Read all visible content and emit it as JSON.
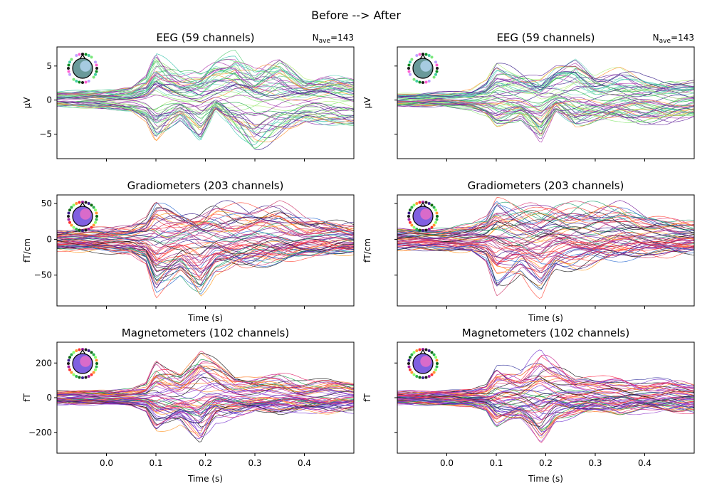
{
  "figure": {
    "suptitle": "Before --> After"
  },
  "chart_data": [
    {
      "type": "line",
      "col": "Before",
      "title": "EEG (59 channels)",
      "nave_label": "N",
      "nave_sub": "ave",
      "nave_value": "=143",
      "ylabel": "µV",
      "xlabel": "",
      "xlim": [
        -0.1,
        0.5
      ],
      "ylim": [
        -8.6,
        7.8
      ],
      "yticks": [
        -5,
        0,
        5
      ],
      "ytick_labels": [
        "−5",
        "0",
        "5"
      ],
      "xticks": [
        0.0,
        0.1,
        0.2,
        0.3,
        0.4
      ],
      "xtick_labels": [],
      "n_channels": 59,
      "palette": [
        "#3a1f8a",
        "#6a2fa0",
        "#8c2aa5",
        "#b040b0",
        "#5dd07c",
        "#8fe87a",
        "#b7ef7e",
        "#40c6b0",
        "#7adcc6",
        "#2fb44f",
        "#ff9a3c"
      ],
      "envelope": {
        "x": [
          -0.1,
          0.0,
          0.05,
          0.08,
          0.1,
          0.15,
          0.19,
          0.22,
          0.26,
          0.3,
          0.35,
          0.4,
          0.45,
          0.5
        ],
        "max": [
          1.2,
          1.5,
          1.7,
          3.2,
          6.8,
          4.0,
          3.5,
          6.0,
          7.0,
          4.2,
          5.5,
          3.0,
          3.5,
          3.0
        ],
        "min": [
          -1.0,
          -1.3,
          -1.8,
          -3.0,
          -6.0,
          -2.8,
          -6.5,
          -1.0,
          -4.5,
          -7.5,
          -5.0,
          -3.5,
          -4.0,
          -4.2
        ]
      }
    },
    {
      "type": "line",
      "col": "After",
      "title": "EEG (59 channels)",
      "nave_label": "N",
      "nave_sub": "ave",
      "nave_value": "=143",
      "ylabel": "µV",
      "xlabel": "",
      "xlim": [
        -0.1,
        0.5
      ],
      "ylim": [
        -8.6,
        7.8
      ],
      "yticks": [
        -5,
        0,
        5
      ],
      "ytick_labels": [],
      "xticks": [
        0.0,
        0.1,
        0.2,
        0.3,
        0.4
      ],
      "xtick_labels": [],
      "n_channels": 59,
      "palette": [
        "#3a1f8a",
        "#6a2fa0",
        "#8c2aa5",
        "#b040b0",
        "#5dd07c",
        "#8fe87a",
        "#b7ef7e",
        "#40c6b0",
        "#7adcc6",
        "#2fb44f",
        "#ff9a3c"
      ],
      "envelope": {
        "x": [
          -0.1,
          0.0,
          0.05,
          0.08,
          0.1,
          0.15,
          0.19,
          0.22,
          0.26,
          0.3,
          0.35,
          0.4,
          0.45,
          0.5
        ],
        "max": [
          1.0,
          1.2,
          1.5,
          2.8,
          5.5,
          4.5,
          3.5,
          6.2,
          7.0,
          4.0,
          4.5,
          3.2,
          3.5,
          3.0
        ],
        "min": [
          -1.0,
          -1.0,
          -1.5,
          -2.5,
          -4.0,
          -3.0,
          -7.3,
          -1.5,
          -4.0,
          -3.5,
          -3.0,
          -3.5,
          -3.5,
          -2.8
        ]
      }
    },
    {
      "type": "line",
      "col": "Before",
      "title": "Gradiometers (203 channels)",
      "ylabel": "fT/cm",
      "xlabel": "Time (s)",
      "xlim": [
        -0.1,
        0.5
      ],
      "ylim": [
        -93,
        62
      ],
      "yticks": [
        -50,
        0,
        50
      ],
      "ytick_labels": [
        "−50",
        "0",
        "50"
      ],
      "xticks": [
        0.0,
        0.1,
        0.2,
        0.3,
        0.4
      ],
      "xtick_labels": [],
      "n_channels": 203,
      "palette": [
        "#1a1a1a",
        "#3a1f8a",
        "#7a1f9a",
        "#a0308a",
        "#d03a6a",
        "#ff3030",
        "#ff5040",
        "#e04080",
        "#ff9a20",
        "#20a070",
        "#2a6ad0"
      ],
      "envelope": {
        "x": [
          -0.1,
          0.0,
          0.05,
          0.08,
          0.1,
          0.15,
          0.19,
          0.22,
          0.26,
          0.3,
          0.35,
          0.4,
          0.45,
          0.5
        ],
        "max": [
          15,
          18,
          20,
          30,
          55,
          45,
          40,
          55,
          52,
          50,
          55,
          35,
          30,
          25
        ],
        "min": [
          -15,
          -18,
          -20,
          -35,
          -85,
          -50,
          -85,
          -45,
          -40,
          -35,
          -30,
          -25,
          -25,
          -20
        ]
      }
    },
    {
      "type": "line",
      "col": "After",
      "title": "Gradiometers (203 channels)",
      "ylabel": "fT/cm",
      "xlabel": "Time (s)",
      "xlim": [
        -0.1,
        0.5
      ],
      "ylim": [
        -93,
        62
      ],
      "yticks": [
        -50,
        0,
        50
      ],
      "ytick_labels": [],
      "xticks": [
        0.0,
        0.1,
        0.2,
        0.3,
        0.4
      ],
      "xtick_labels": [],
      "n_channels": 203,
      "palette": [
        "#1a1a1a",
        "#3a1f8a",
        "#7a1f9a",
        "#a0308a",
        "#d03a6a",
        "#ff3030",
        "#ff5040",
        "#e04080",
        "#ff9a20",
        "#20a070",
        "#2a6ad0"
      ],
      "envelope": {
        "x": [
          -0.1,
          0.0,
          0.05,
          0.08,
          0.1,
          0.15,
          0.19,
          0.22,
          0.26,
          0.3,
          0.35,
          0.4,
          0.45,
          0.5
        ],
        "max": [
          15,
          18,
          20,
          30,
          55,
          45,
          40,
          50,
          52,
          50,
          50,
          35,
          30,
          25
        ],
        "min": [
          -15,
          -18,
          -20,
          -35,
          -80,
          -50,
          -85,
          -45,
          -40,
          -35,
          -30,
          -25,
          -25,
          -20
        ]
      }
    },
    {
      "type": "line",
      "col": "Before",
      "title": "Magnetometers (102 channels)",
      "ylabel": "fT",
      "xlabel": "Time (s)",
      "xlim": [
        -0.1,
        0.5
      ],
      "ylim": [
        -320,
        320
      ],
      "yticks": [
        -200,
        0,
        200
      ],
      "ytick_labels": [
        "−200",
        "0",
        "200"
      ],
      "xticks": [
        0.0,
        0.1,
        0.2,
        0.3,
        0.4
      ],
      "xtick_labels": [
        "0.0",
        "0.1",
        "0.2",
        "0.3",
        "0.4"
      ],
      "n_channels": 102,
      "palette": [
        "#1a1a1a",
        "#3a3aa0",
        "#7a3ad0",
        "#a050d0",
        "#c8208a",
        "#ff3050",
        "#ff7a20",
        "#ff9a30",
        "#20a050",
        "#e03070",
        "#6a2fd0"
      ],
      "envelope": {
        "x": [
          -0.1,
          0.0,
          0.05,
          0.08,
          0.1,
          0.15,
          0.19,
          0.22,
          0.26,
          0.3,
          0.35,
          0.4,
          0.45,
          0.5
        ],
        "max": [
          40,
          45,
          50,
          80,
          210,
          150,
          290,
          240,
          130,
          120,
          140,
          100,
          110,
          90
        ],
        "min": [
          -40,
          -45,
          -50,
          -80,
          -200,
          -150,
          -290,
          -120,
          -110,
          -80,
          -100,
          -80,
          -90,
          -80
        ]
      }
    },
    {
      "type": "line",
      "col": "After",
      "title": "Magnetometers (102 channels)",
      "ylabel": "fT",
      "xlabel": "Time (s)",
      "xlim": [
        -0.1,
        0.5
      ],
      "ylim": [
        -320,
        320
      ],
      "yticks": [
        -200,
        0,
        200
      ],
      "ytick_labels": [],
      "xticks": [
        0.0,
        0.1,
        0.2,
        0.3,
        0.4
      ],
      "xtick_labels": [
        "0.0",
        "0.1",
        "0.2",
        "0.3",
        "0.4"
      ],
      "n_channels": 102,
      "palette": [
        "#1a1a1a",
        "#3a3aa0",
        "#7a3ad0",
        "#a050d0",
        "#c8208a",
        "#ff3050",
        "#ff7a20",
        "#ff9a30",
        "#20a050",
        "#e03070",
        "#6a2fd0"
      ],
      "envelope": {
        "x": [
          -0.1,
          0.0,
          0.05,
          0.08,
          0.1,
          0.15,
          0.19,
          0.22,
          0.26,
          0.3,
          0.35,
          0.4,
          0.45,
          0.5
        ],
        "max": [
          40,
          45,
          50,
          80,
          200,
          150,
          290,
          240,
          130,
          120,
          140,
          100,
          110,
          90
        ],
        "min": [
          -40,
          -45,
          -50,
          -80,
          -190,
          -150,
          -270,
          -120,
          -110,
          -80,
          -100,
          -80,
          -90,
          -80
        ]
      }
    }
  ]
}
